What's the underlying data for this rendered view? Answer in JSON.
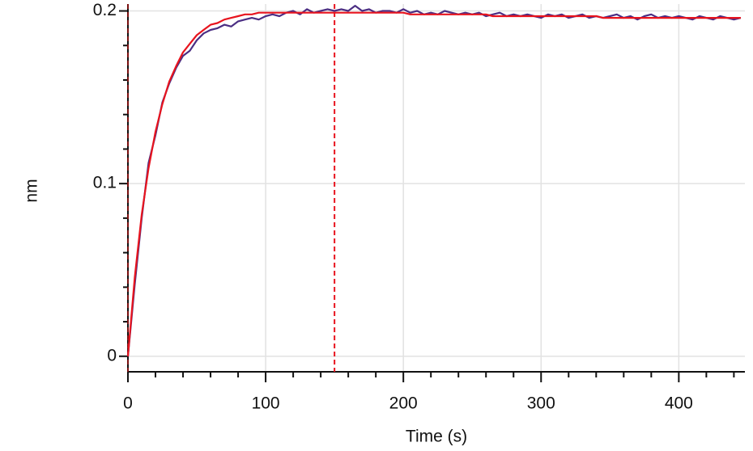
{
  "chart_data": {
    "type": "line",
    "x_label": "Time (s)",
    "y_label": "nm",
    "x": [
      0,
      5,
      10,
      15,
      20,
      25,
      30,
      35,
      40,
      45,
      50,
      55,
      60,
      65,
      70,
      75,
      80,
      85,
      90,
      95,
      100,
      105,
      110,
      115,
      120,
      125,
      130,
      135,
      140,
      145,
      150,
      155,
      160,
      165,
      170,
      175,
      180,
      185,
      190,
      195,
      200,
      205,
      210,
      215,
      220,
      225,
      230,
      235,
      240,
      245,
      250,
      255,
      260,
      265,
      270,
      275,
      280,
      285,
      290,
      295,
      300,
      305,
      310,
      315,
      320,
      325,
      330,
      335,
      340,
      345,
      350,
      355,
      360,
      365,
      370,
      375,
      380,
      385,
      390,
      395,
      400,
      405,
      410,
      415,
      420,
      425,
      430,
      435,
      440,
      445
    ],
    "series": [
      {
        "color": "#4b2e83",
        "values": [
          0,
          0.042,
          0.08,
          0.112,
          0.128,
          0.147,
          0.158,
          0.167,
          0.174,
          0.177,
          0.183,
          0.187,
          0.189,
          0.19,
          0.192,
          0.191,
          0.194,
          0.195,
          0.196,
          0.195,
          0.197,
          0.198,
          0.197,
          0.199,
          0.2,
          0.198,
          0.201,
          0.199,
          0.2,
          0.201,
          0.2,
          0.201,
          0.2,
          0.203,
          0.2,
          0.201,
          0.199,
          0.2,
          0.2,
          0.199,
          0.201,
          0.199,
          0.2,
          0.198,
          0.199,
          0.198,
          0.2,
          0.199,
          0.198,
          0.199,
          0.198,
          0.199,
          0.197,
          0.198,
          0.199,
          0.197,
          0.198,
          0.197,
          0.198,
          0.197,
          0.196,
          0.198,
          0.197,
          0.198,
          0.196,
          0.197,
          0.198,
          0.196,
          0.197,
          0.196,
          0.197,
          0.198,
          0.196,
          0.197,
          0.195,
          0.197,
          0.198,
          0.196,
          0.197,
          0.196,
          0.197,
          0.196,
          0.195,
          0.197,
          0.196,
          0.195,
          0.197,
          0.196,
          0.195,
          0.196
        ]
      },
      {
        "color": "#e8141e",
        "values": [
          0,
          0.046,
          0.082,
          0.109,
          0.13,
          0.146,
          0.159,
          0.168,
          0.176,
          0.181,
          0.186,
          0.189,
          0.192,
          0.193,
          0.195,
          0.196,
          0.197,
          0.198,
          0.198,
          0.199,
          0.199,
          0.199,
          0.199,
          0.199,
          0.199,
          0.199,
          0.199,
          0.199,
          0.199,
          0.199,
          0.199,
          0.199,
          0.199,
          0.199,
          0.199,
          0.199,
          0.199,
          0.199,
          0.199,
          0.199,
          0.199,
          0.198,
          0.198,
          0.198,
          0.198,
          0.198,
          0.198,
          0.198,
          0.198,
          0.198,
          0.198,
          0.198,
          0.198,
          0.197,
          0.197,
          0.197,
          0.197,
          0.197,
          0.197,
          0.197,
          0.197,
          0.197,
          0.197,
          0.197,
          0.197,
          0.197,
          0.197,
          0.197,
          0.197,
          0.196,
          0.196,
          0.196,
          0.196,
          0.196,
          0.196,
          0.196,
          0.196,
          0.196,
          0.196,
          0.196,
          0.196,
          0.196,
          0.196,
          0.196,
          0.196,
          0.196,
          0.196,
          0.196,
          0.196,
          0.196
        ]
      }
    ],
    "vlines": [
      {
        "x": 0,
        "color": "#7a1010"
      },
      {
        "x": 150,
        "color": "#e8141e"
      }
    ],
    "xlim": [
      0,
      448
    ],
    "ylim": [
      -0.009,
      0.204
    ],
    "xticks": [
      0,
      100,
      200,
      300,
      400
    ],
    "xminorticks": [
      20,
      40,
      60,
      80,
      120,
      140,
      160,
      180,
      220,
      240,
      260,
      280,
      320,
      340,
      360,
      380,
      420,
      440
    ],
    "yticks": [
      0,
      0.1,
      0.2
    ],
    "yminorticks": [
      0.02,
      0.04,
      0.06,
      0.08,
      0.12,
      0.14,
      0.16,
      0.18
    ],
    "grid": true
  }
}
